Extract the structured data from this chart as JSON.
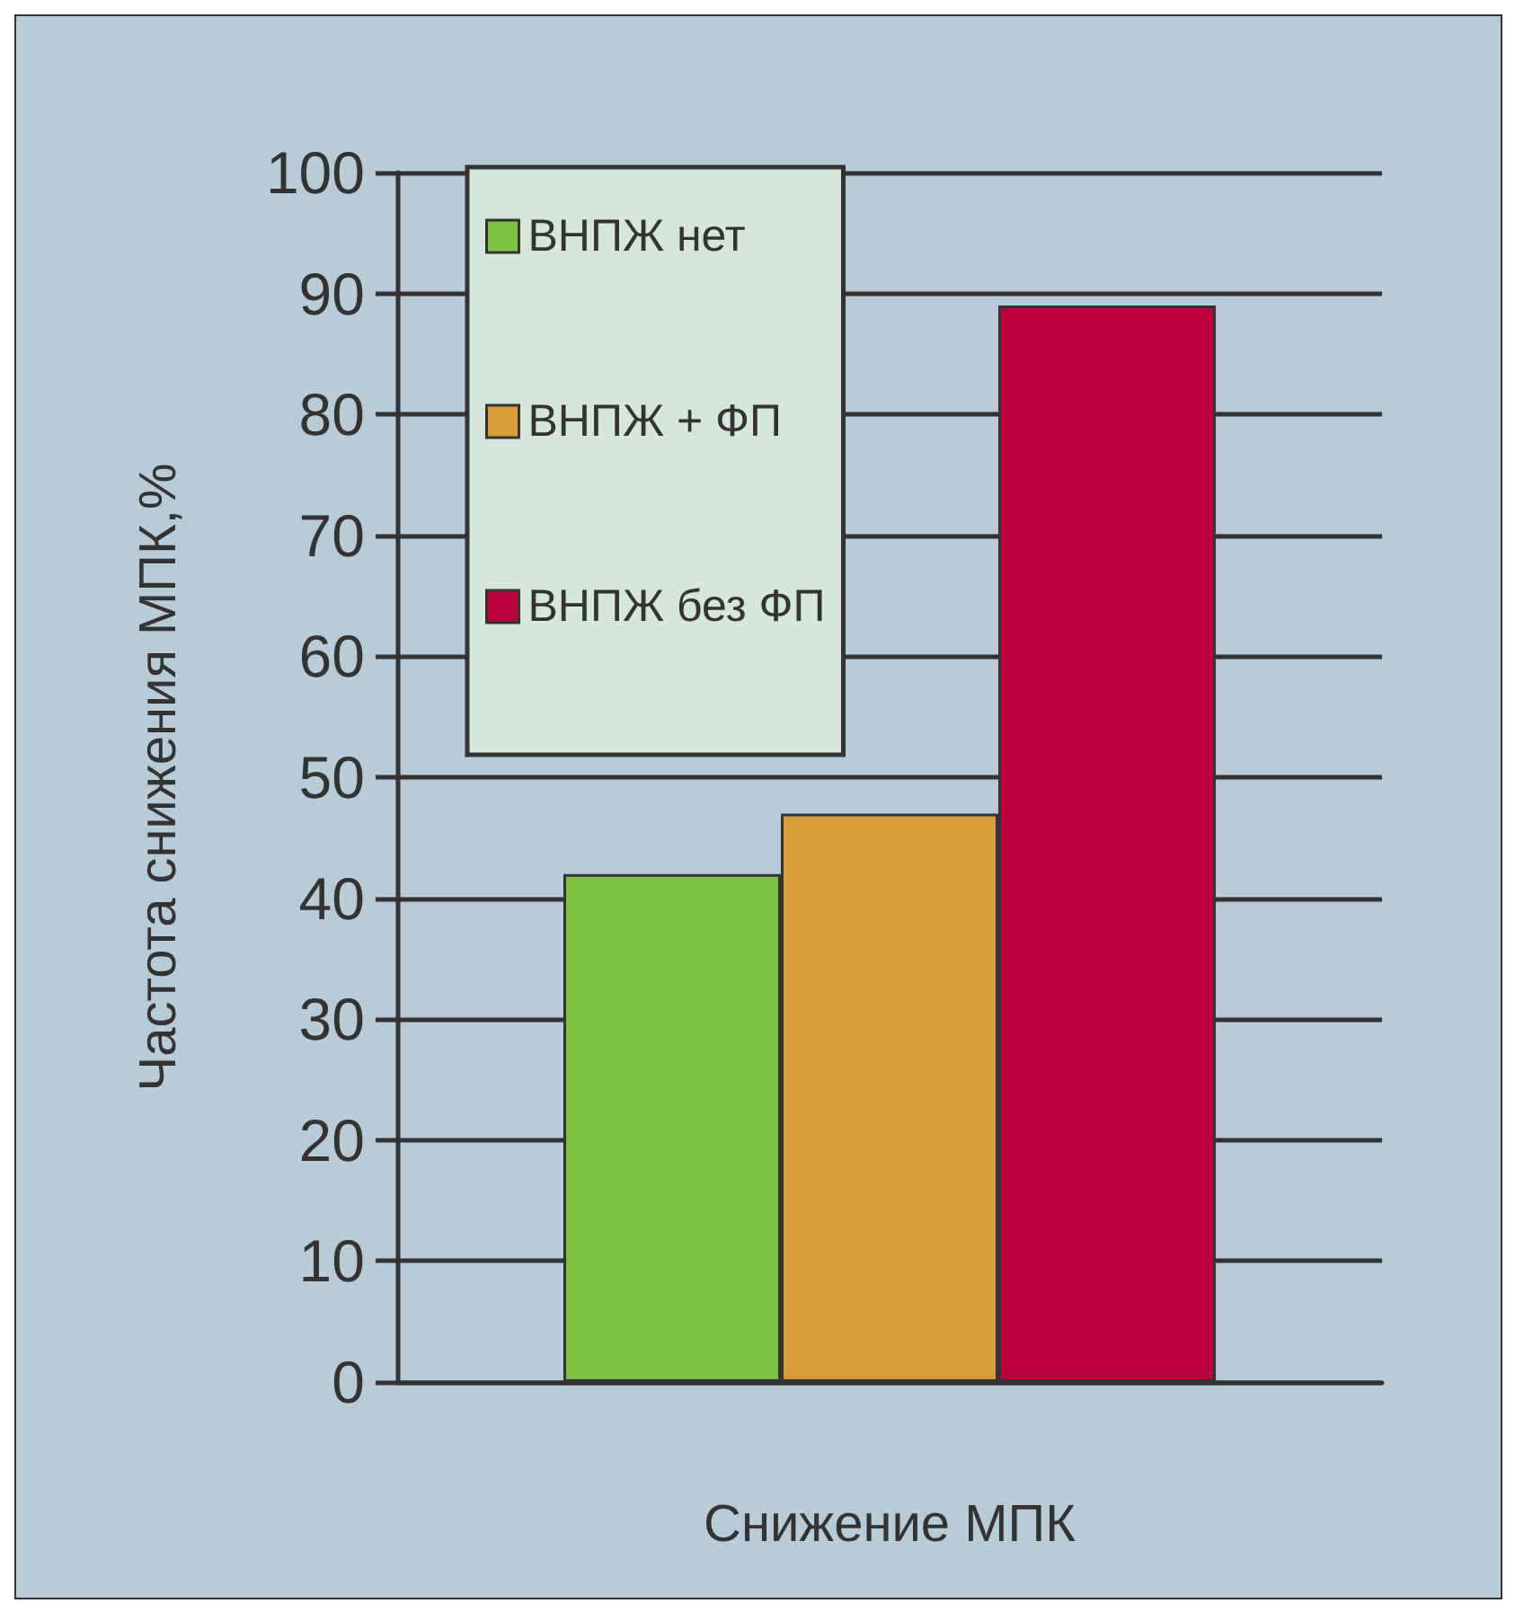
{
  "chart_data": {
    "type": "bar",
    "xlabel": "Снижение МПК",
    "ylabel": "Частота снижения МПК,%",
    "categories": [
      null
    ],
    "series": [
      {
        "name": "ВНПЖ нет",
        "color": "#7dc242",
        "values": [
          42
        ]
      },
      {
        "name": "ВНПЖ + ФП",
        "color": "#d89c38",
        "values": [
          47
        ]
      },
      {
        "name": "ВНПЖ без ФП",
        "color": "#b9003c",
        "values": [
          89
        ]
      }
    ],
    "ylim": [
      0,
      100
    ],
    "yticks": [
      0,
      10,
      20,
      30,
      40,
      50,
      60,
      70,
      80,
      90,
      100
    ],
    "grid": "y",
    "legend": "top left"
  }
}
